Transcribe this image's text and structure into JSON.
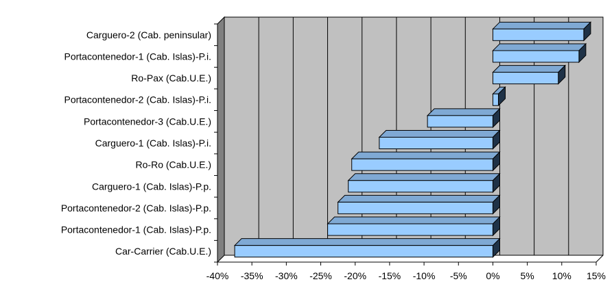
{
  "colors": {
    "wall": "#c0c0c0",
    "floor": "#808080",
    "bar_front": "#99ccff",
    "bar_top": "#7fa9d4",
    "bar_side": "#1f3247",
    "gridline": "#000000",
    "background": "#ffffff"
  },
  "chart_data": {
    "type": "bar",
    "orientation": "horizontal",
    "style": "3d",
    "title": "",
    "xlabel": "",
    "ylabel": "",
    "categories": [
      "Car-Carrier (Cab.U.E.)",
      "Portacontenedor-1 (Cab. Islas)-P.p.",
      "Portacontenedor-2 (Cab. Islas)-P.p.",
      "Carguero-1 (Cab. Islas)-P.p.",
      "Ro-Ro (Cab.U.E.)",
      "Carguero-1 (Cab. Islas)-P.i.",
      "Portacontenedor-3 (Cab.U.E.)",
      "Portacontenedor-2 (Cab. Islas)-P.i.",
      "Ro-Pax (Cab.U.E.)",
      "Portacontenedor-1 (Cab. Islas)-P.i.",
      "Carguero-2 (Cab. peninsular)"
    ],
    "values": [
      -37.5,
      -24,
      -22.5,
      -21,
      -20.5,
      -16.5,
      -9.5,
      0.8,
      9.5,
      12.5,
      13.2
    ],
    "xlim": [
      -40,
      15
    ],
    "x_ticks": [
      -40,
      -35,
      -30,
      -25,
      -20,
      -15,
      -10,
      -5,
      0,
      5,
      10,
      15
    ],
    "x_tick_labels": [
      "-40%",
      "-35%",
      "-30%",
      "-25%",
      "-20%",
      "-15%",
      "-10%",
      "-5%",
      "0%",
      "5%",
      "10%",
      "15%"
    ],
    "grid": true,
    "legend": "none"
  }
}
